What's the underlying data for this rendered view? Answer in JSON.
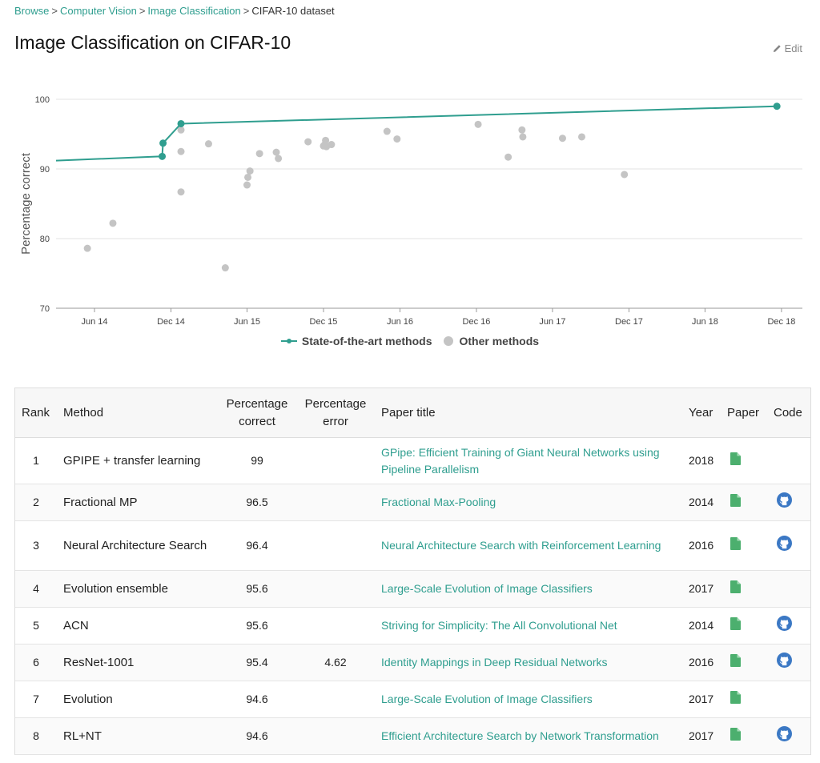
{
  "breadcrumb": {
    "items": [
      "Browse",
      "Computer Vision",
      "Image Classification"
    ],
    "current": "CIFAR-10 dataset"
  },
  "page_title": "Image Classification on CIFAR-10",
  "edit_label": "Edit",
  "colors": {
    "accent": "#2f9e8f",
    "other_points": "#c4c4c4",
    "paper_icon": "#4caf6e",
    "code_icon": "#3b78c4"
  },
  "chart_data": {
    "type": "scatter",
    "ylabel": "Percentage correct",
    "xlabel": "",
    "yticks": [
      70,
      80,
      90,
      100
    ],
    "ylim": [
      70,
      100
    ],
    "xlim": [
      "2014-03-01",
      "2019-01-20"
    ],
    "xticks": [
      {
        "label": "Jun 14",
        "date": "2014-06-01"
      },
      {
        "label": "Dec 14",
        "date": "2014-12-01"
      },
      {
        "label": "Jun 15",
        "date": "2015-06-01"
      },
      {
        "label": "Dec 15",
        "date": "2015-12-01"
      },
      {
        "label": "Jun 16",
        "date": "2016-06-01"
      },
      {
        "label": "Dec 16",
        "date": "2016-12-01"
      },
      {
        "label": "Jun 17",
        "date": "2017-06-01"
      },
      {
        "label": "Dec 17",
        "date": "2017-12-01"
      },
      {
        "label": "Jun 18",
        "date": "2018-06-01"
      },
      {
        "label": "Dec 18",
        "date": "2018-12-01"
      }
    ],
    "legend": [
      "State-of-the-art methods",
      "Other methods"
    ],
    "legend_position": "bottom-center",
    "grid": true,
    "series": [
      {
        "name": "State-of-the-art methods",
        "type": "line",
        "points": [
          {
            "x": "2014-03-01",
            "y": 91.2
          },
          {
            "x": "2014-11-10",
            "y": 91.8
          },
          {
            "x": "2014-11-12",
            "y": 93.7
          },
          {
            "x": "2014-12-25",
            "y": 96.5
          },
          {
            "x": "2018-11-20",
            "y": 99
          }
        ],
        "markers": [
          {
            "x": "2014-11-10",
            "y": 91.8
          },
          {
            "x": "2014-11-12",
            "y": 93.7
          },
          {
            "x": "2014-12-25",
            "y": 96.5
          },
          {
            "x": "2018-11-20",
            "y": 99
          }
        ]
      },
      {
        "name": "Other methods",
        "type": "scatter",
        "points": [
          {
            "x": "2014-05-15",
            "y": 78.6
          },
          {
            "x": "2014-07-15",
            "y": 82.2
          },
          {
            "x": "2014-12-25",
            "y": 95.6
          },
          {
            "x": "2014-12-25",
            "y": 92.5
          },
          {
            "x": "2014-12-25",
            "y": 86.7
          },
          {
            "x": "2015-03-01",
            "y": 93.6
          },
          {
            "x": "2015-04-10",
            "y": 75.8
          },
          {
            "x": "2015-06-01",
            "y": 87.7
          },
          {
            "x": "2015-06-03",
            "y": 88.8
          },
          {
            "x": "2015-06-08",
            "y": 89.7
          },
          {
            "x": "2015-07-01",
            "y": 92.2
          },
          {
            "x": "2015-08-10",
            "y": 92.4
          },
          {
            "x": "2015-08-15",
            "y": 91.5
          },
          {
            "x": "2015-10-25",
            "y": 93.9
          },
          {
            "x": "2015-12-01",
            "y": 93.3
          },
          {
            "x": "2015-12-04",
            "y": 93.5
          },
          {
            "x": "2015-12-06",
            "y": 94.1
          },
          {
            "x": "2015-12-08",
            "y": 93.2
          },
          {
            "x": "2015-12-20",
            "y": 93.5
          },
          {
            "x": "2016-05-01",
            "y": 95.4
          },
          {
            "x": "2016-05-25",
            "y": 94.3
          },
          {
            "x": "2016-12-05",
            "y": 96.4
          },
          {
            "x": "2017-02-15",
            "y": 91.7
          },
          {
            "x": "2017-03-20",
            "y": 95.6
          },
          {
            "x": "2017-03-22",
            "y": 94.6
          },
          {
            "x": "2017-06-25",
            "y": 94.4
          },
          {
            "x": "2017-08-10",
            "y": 94.6
          },
          {
            "x": "2017-11-20",
            "y": 89.2
          }
        ]
      }
    ]
  },
  "table": {
    "headers": {
      "rank": "Rank",
      "method": "Method",
      "pct_correct": "Percentage correct",
      "pct_error": "Percentage error",
      "paper_title": "Paper title",
      "year": "Year",
      "paper": "Paper",
      "code": "Code"
    },
    "rows": [
      {
        "rank": "1",
        "method": "GPIPE + transfer learning",
        "pct_correct": "99",
        "pct_error": "",
        "paper_title": "GPipe: Efficient Training of Giant Neural Networks using Pipeline Parallelism",
        "year": "2018",
        "has_code": false
      },
      {
        "rank": "2",
        "method": "Fractional MP",
        "pct_correct": "96.5",
        "pct_error": "",
        "paper_title": "Fractional Max-Pooling",
        "year": "2014",
        "has_code": true
      },
      {
        "rank": "3",
        "method": "Neural Architecture Search",
        "pct_correct": "96.4",
        "pct_error": "",
        "paper_title": "Neural Architecture Search with Reinforcement Learning",
        "year": "2016",
        "has_code": true
      },
      {
        "rank": "4",
        "method": "Evolution ensemble",
        "pct_correct": "95.6",
        "pct_error": "",
        "paper_title": "Large-Scale Evolution of Image Classifiers",
        "year": "2017",
        "has_code": false
      },
      {
        "rank": "5",
        "method": "ACN",
        "pct_correct": "95.6",
        "pct_error": "",
        "paper_title": "Striving for Simplicity: The All Convolutional Net",
        "year": "2014",
        "has_code": true
      },
      {
        "rank": "6",
        "method": "ResNet-1001",
        "pct_correct": "95.4",
        "pct_error": "4.62",
        "paper_title": "Identity Mappings in Deep Residual Networks",
        "year": "2016",
        "has_code": true
      },
      {
        "rank": "7",
        "method": "Evolution",
        "pct_correct": "94.6",
        "pct_error": "",
        "paper_title": "Large-Scale Evolution of Image Classifiers",
        "year": "2017",
        "has_code": false
      },
      {
        "rank": "8",
        "method": "RL+NT",
        "pct_correct": "94.6",
        "pct_error": "",
        "paper_title": "Efficient Architecture Search by Network Transformation",
        "year": "2017",
        "has_code": true
      }
    ]
  }
}
